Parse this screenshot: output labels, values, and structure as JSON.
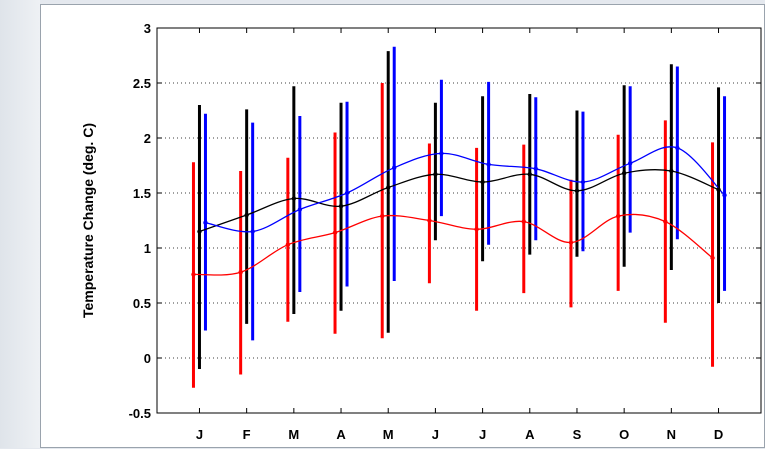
{
  "chart_data": {
    "type": "line",
    "title": "",
    "xlabel": "",
    "ylabel": "Temperature Change (deg. C)",
    "categories": [
      "J",
      "F",
      "M",
      "A",
      "M",
      "J",
      "J",
      "A",
      "S",
      "O",
      "N",
      "D"
    ],
    "ylim": [
      -0.5,
      3
    ],
    "yticks": [
      -0.5,
      0,
      0.5,
      1,
      1.5,
      2,
      2.5,
      3
    ],
    "ytick_labels": [
      "-0.5",
      "0",
      "0.5",
      "1",
      "1.5",
      "2",
      "2.5",
      "3"
    ],
    "grid": "dotted",
    "legend": "none",
    "series": [
      {
        "color": "#ff0000",
        "values": [
          0.76,
          0.78,
          1.03,
          1.14,
          1.29,
          1.25,
          1.17,
          1.24,
          1.05,
          1.29,
          1.24,
          0.91
        ],
        "range_low": [
          -0.27,
          -0.15,
          0.33,
          0.22,
          0.18,
          0.68,
          0.43,
          0.59,
          0.46,
          0.61,
          0.32,
          -0.08
        ],
        "range_high": [
          1.78,
          1.7,
          1.82,
          2.05,
          2.5,
          1.95,
          1.91,
          1.94,
          1.62,
          2.03,
          2.16,
          1.96
        ]
      },
      {
        "color": "#000000",
        "values": [
          1.15,
          1.3,
          1.45,
          1.38,
          1.55,
          1.67,
          1.6,
          1.67,
          1.52,
          1.68,
          1.7,
          1.53
        ],
        "range_low": [
          -0.1,
          0.31,
          0.4,
          0.43,
          0.23,
          1.07,
          0.88,
          0.94,
          0.92,
          0.83,
          0.8,
          0.5
        ],
        "range_high": [
          2.3,
          2.26,
          2.47,
          2.32,
          2.79,
          2.32,
          2.38,
          2.4,
          2.25,
          2.48,
          2.67,
          2.46
        ]
      },
      {
        "color": "#0000ff",
        "values": [
          1.23,
          1.15,
          1.35,
          1.5,
          1.73,
          1.86,
          1.76,
          1.72,
          1.6,
          1.77,
          1.91,
          1.48
        ],
        "range_low": [
          0.25,
          0.16,
          0.6,
          0.65,
          0.7,
          1.29,
          1.03,
          1.07,
          0.97,
          1.14,
          1.08,
          0.61
        ],
        "range_high": [
          2.22,
          2.14,
          2.2,
          2.33,
          2.83,
          2.53,
          2.51,
          2.37,
          2.24,
          2.47,
          2.65,
          2.38
        ]
      }
    ]
  }
}
